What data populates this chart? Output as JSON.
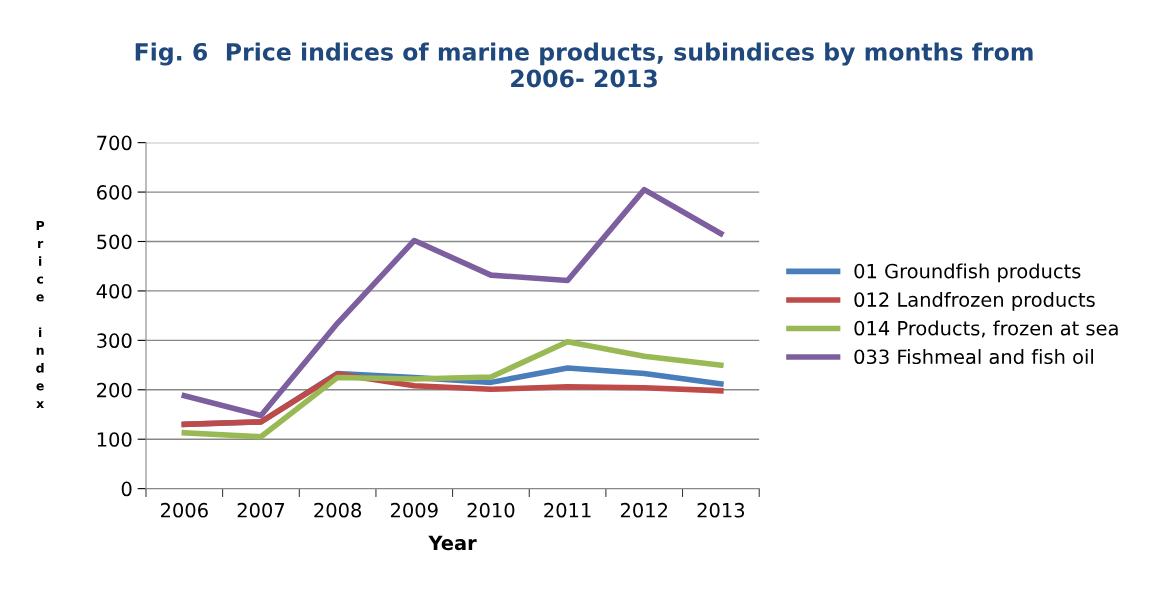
{
  "chart_data": {
    "type": "line",
    "title": "Fig. 6  Price indices of marine products, subindices by months from\n2006- 2013",
    "xlabel": "Year",
    "ylabel": "Price index",
    "categories": [
      "2006",
      "2007",
      "2008",
      "2009",
      "2010",
      "2011",
      "2012",
      "2013"
    ],
    "series": [
      {
        "name": "01 Groundfish products",
        "color": "#4a7ebb",
        "values": [
          130,
          135,
          233,
          225,
          215,
          244,
          233,
          212
        ]
      },
      {
        "name": "012 Landfrozen products",
        "color": "#be4b48",
        "values": [
          130,
          135,
          232,
          208,
          201,
          206,
          204,
          198
        ]
      },
      {
        "name": "014 Products, frozen at sea",
        "color": "#98b954",
        "values": [
          113,
          105,
          225,
          222,
          226,
          297,
          268,
          250
        ]
      },
      {
        "name": "033 Fishmeal and fish oil",
        "color": "#7d5fa0",
        "values": [
          188,
          148,
          335,
          502,
          432,
          421,
          605,
          516
        ]
      }
    ],
    "ylim": [
      0,
      700
    ],
    "yticks": [
      0,
      100,
      200,
      300,
      400,
      500,
      600,
      700
    ],
    "grid": "y",
    "legend": "right",
    "marker": "none",
    "line_style": "solid"
  }
}
